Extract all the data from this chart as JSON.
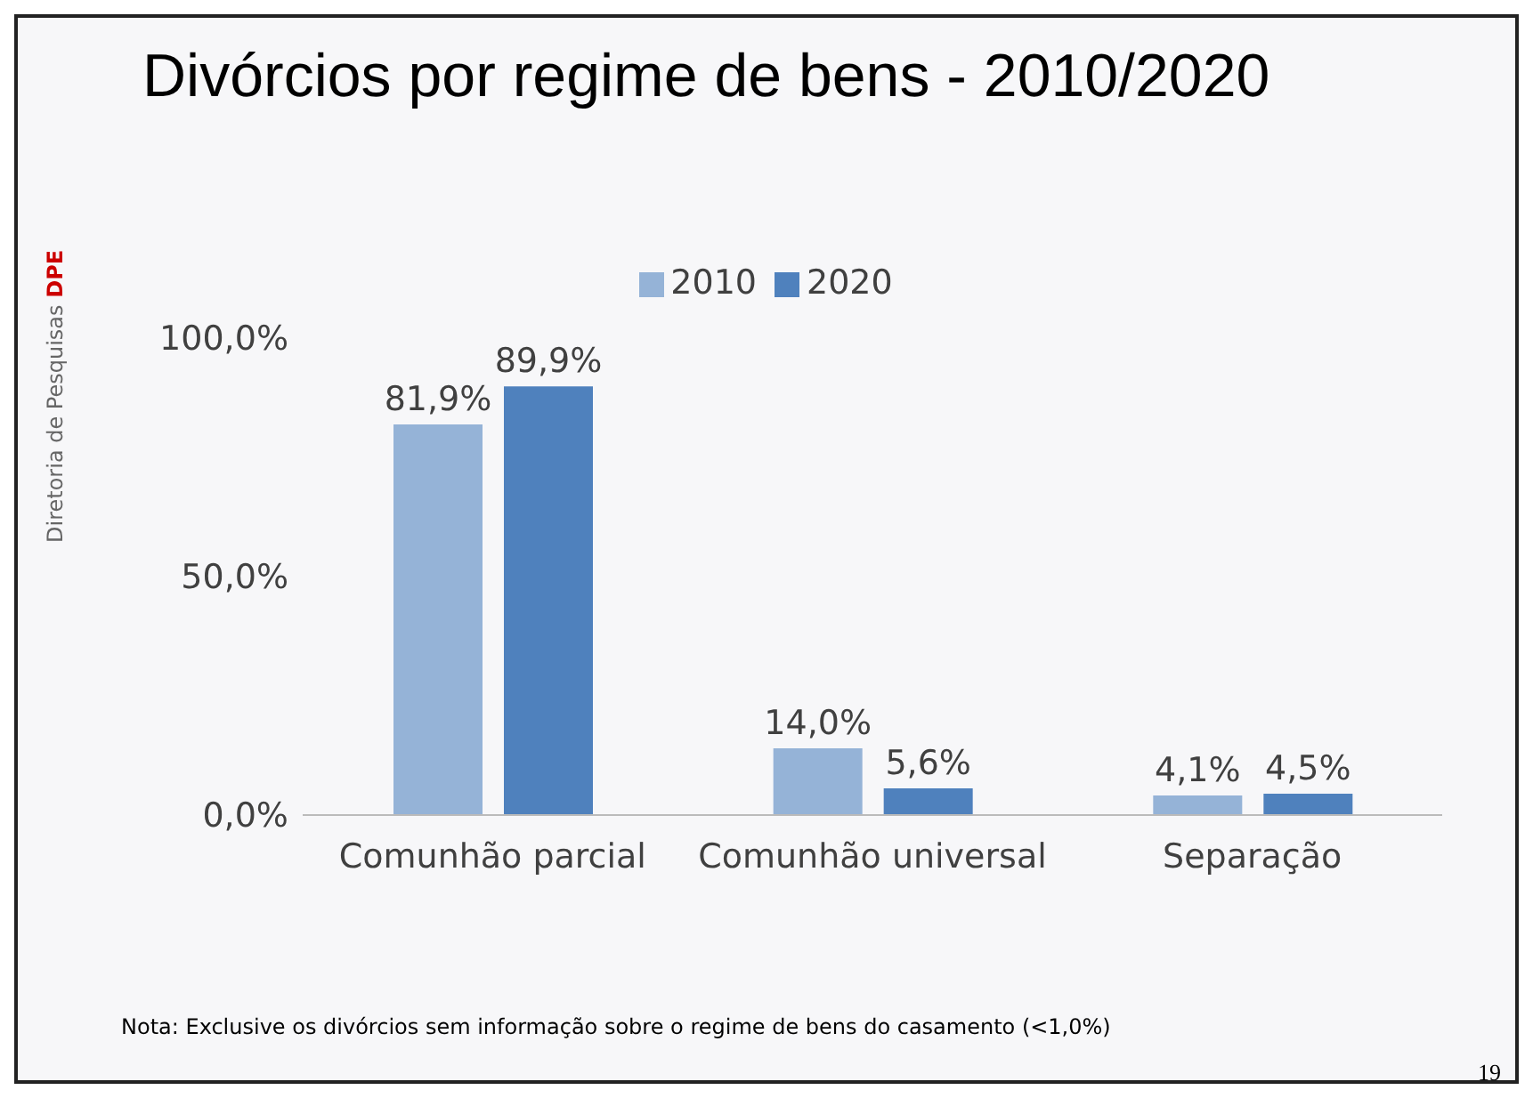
{
  "chart_data": {
    "type": "bar",
    "title": "Divórcios por regime de bens - 2010/2020",
    "categories": [
      "Comunhão parcial",
      "Comunhão universal",
      "Separação"
    ],
    "series": [
      {
        "name": "2010",
        "color": "#95b3d7",
        "values": [
          81.9,
          14.0,
          4.1
        ],
        "value_labels": [
          "81,9%",
          "14,0%",
          "4,1%"
        ]
      },
      {
        "name": "2020",
        "color": "#4f81bd",
        "values": [
          89.9,
          5.6,
          4.5
        ],
        "value_labels": [
          "89,9%",
          "5,6%",
          "4,5%"
        ]
      }
    ],
    "ylim": [
      0,
      100
    ],
    "yticks": [
      {
        "value": 0,
        "label": "0,0%"
      },
      {
        "value": 50,
        "label": "50,0%"
      },
      {
        "value": 100,
        "label": "100,0%"
      }
    ],
    "grid": false,
    "legend": "top",
    "annotations": [
      "Nota: Exclusive os divórcios sem informação sobre o regime de bens do casamento (<1,0%)",
      "Diretoria de Pesquisas",
      "DPE",
      "19"
    ]
  }
}
